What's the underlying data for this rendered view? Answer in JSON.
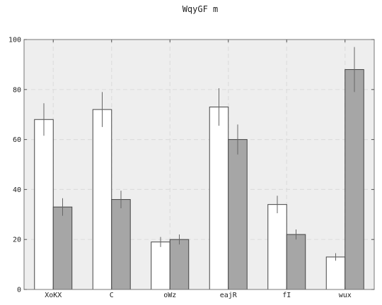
{
  "chart_data": {
    "type": "bar",
    "title": "WqyGF  m",
    "xlabel": "",
    "ylabel": "",
    "categories": [
      "XoKX",
      "C",
      "oWz",
      "eajR",
      "fI",
      "wux"
    ],
    "ylim": [
      0,
      100
    ],
    "yticks": [
      0,
      20,
      40,
      60,
      80,
      100
    ],
    "grid": true,
    "series": [
      {
        "color": "#ffffff",
        "values": [
          68,
          72,
          19,
          73,
          34,
          13
        ],
        "errors": [
          6.5,
          7.0,
          2.0,
          7.5,
          3.5,
          1.5
        ]
      },
      {
        "color": "#a6a6a6",
        "values": [
          33,
          36,
          20,
          60,
          22,
          88
        ],
        "errors": [
          3.5,
          3.5,
          2.0,
          6.0,
          2.0,
          9.0
        ]
      }
    ],
    "plot_background": "#eeeeee"
  }
}
